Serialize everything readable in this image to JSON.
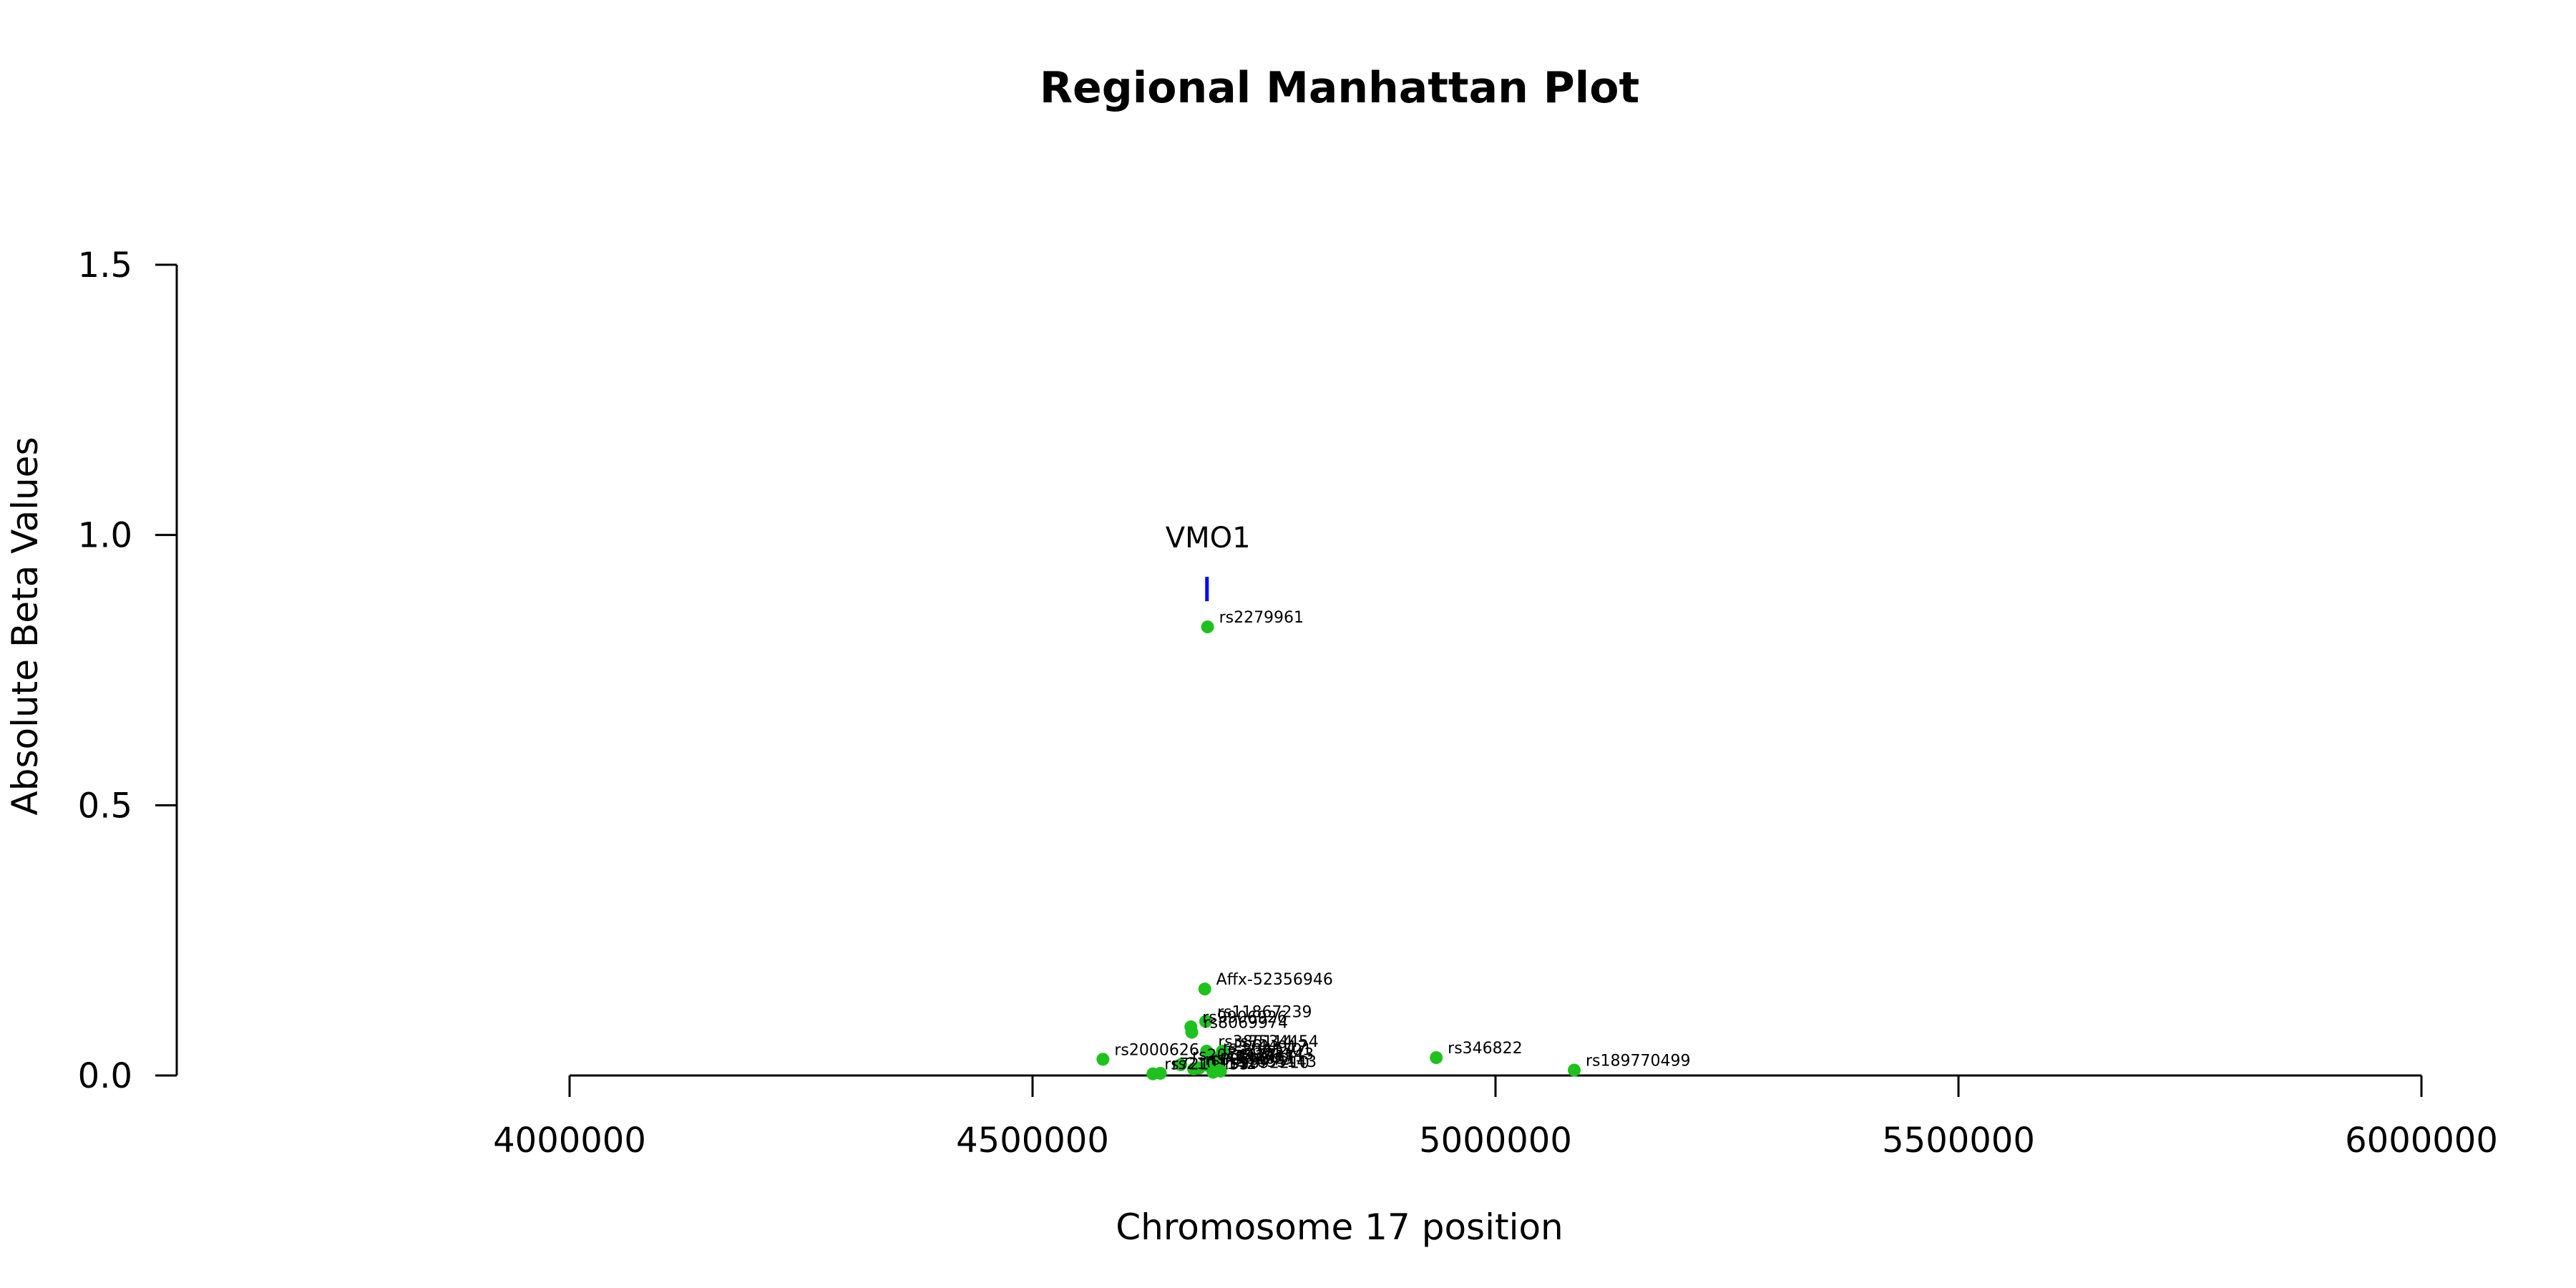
{
  "chart_data": {
    "type": "scatter",
    "title": "Regional Manhattan Plot",
    "xlabel": "Chromosome 17 position",
    "ylabel": "Absolute Beta Values",
    "xlim": [
      4000000,
      6000000
    ],
    "ylim": [
      0,
      1.5
    ],
    "x_ticks": [
      "4000000",
      "4500000",
      "5000000",
      "5500000",
      "6000000"
    ],
    "y_ticks": [
      "0.0",
      "0.5",
      "1.0",
      "1.5"
    ],
    "point_color": "#1ec21e",
    "gene_color": "#0000ff",
    "genes": [
      {
        "name": "VMO1",
        "start": 4688000,
        "end": 4691000,
        "y": 0.9
      }
    ],
    "points": [
      {
        "label": "rs2279961",
        "x": 4689000,
        "y": 0.83
      },
      {
        "label": "Affx-52356946",
        "x": 4686000,
        "y": 0.16
      },
      {
        "label": "rs11867239",
        "x": 4687000,
        "y": 0.1
      },
      {
        "label": "rs9906926",
        "x": 4671000,
        "y": 0.09
      },
      {
        "label": "rs8069974",
        "x": 4672000,
        "y": 0.08
      },
      {
        "label": "rs385114",
        "x": 4688000,
        "y": 0.045
      },
      {
        "label": "rs7534454",
        "x": 4705000,
        "y": 0.045
      },
      {
        "label": "rs2000626",
        "x": 4576000,
        "y": 0.03
      },
      {
        "label": "rs346822",
        "x": 4936000,
        "y": 0.033
      },
      {
        "label": "rs189770499",
        "x": 5085000,
        "y": 0.01
      },
      {
        "label": "rs3744917",
        "x": 4693000,
        "y": 0.035
      },
      {
        "label": "rs2041701",
        "x": 4698000,
        "y": 0.03
      },
      {
        "label": "rs9303143",
        "x": 4700000,
        "y": 0.022
      },
      {
        "label": "rs7217171",
        "x": 4690000,
        "y": 0.018
      },
      {
        "label": "rs4986051",
        "x": 4680000,
        "y": 0.014
      },
      {
        "label": "rs2074627",
        "x": 4660000,
        "y": 0.02
      },
      {
        "label": "rs8079342",
        "x": 4674000,
        "y": 0.012
      },
      {
        "label": "rs2107142",
        "x": 4638000,
        "y": 0.004
      },
      {
        "label": "rs7211155",
        "x": 4630000,
        "y": 0.003
      },
      {
        "label": "rs9892210",
        "x": 4695000,
        "y": 0.006
      },
      {
        "label": "rs1055143",
        "x": 4703000,
        "y": 0.008
      }
    ]
  }
}
